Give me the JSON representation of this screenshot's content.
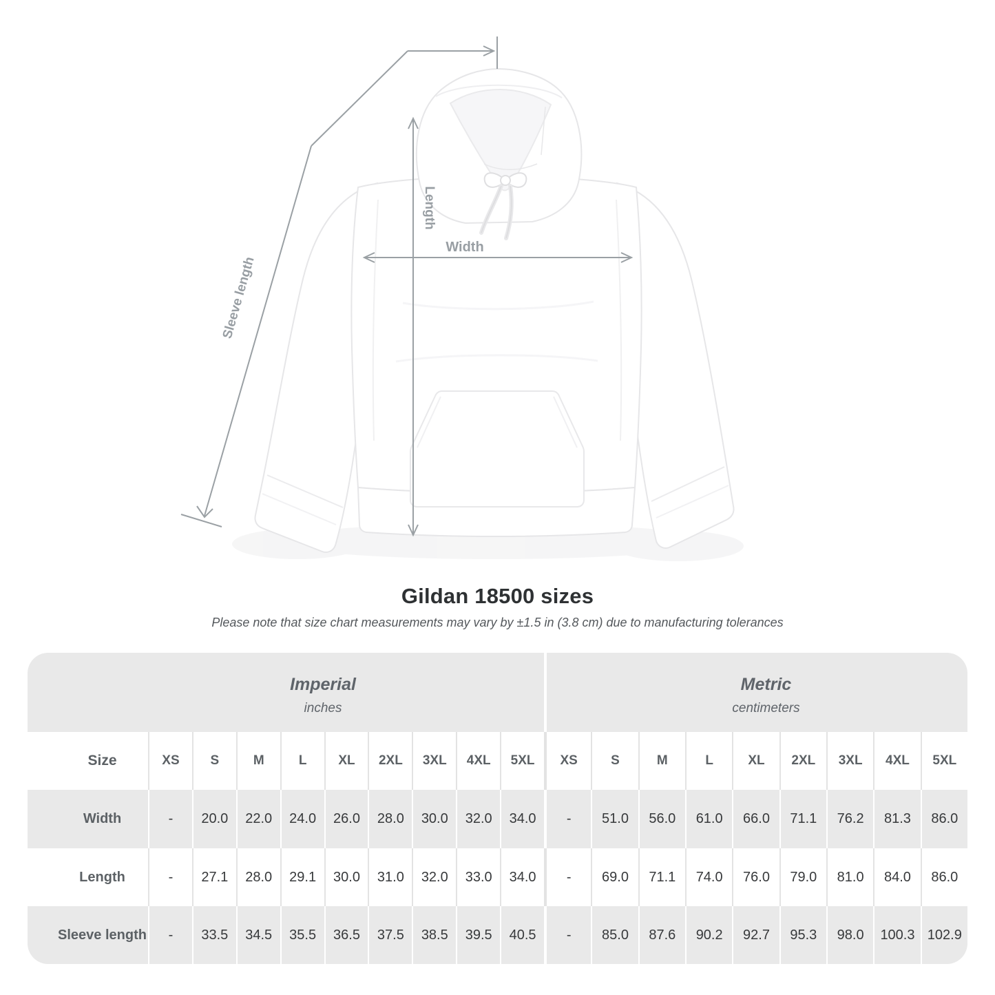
{
  "heading": {
    "title": "Gildan 18500 sizes",
    "subtitle": "Please note that size chart measurements may vary by ±1.5 in (3.8 cm) due to manufacturing tolerances"
  },
  "diagram": {
    "labels": {
      "sleeve_length": "Sleeve length",
      "length": "Length",
      "width": "Width"
    },
    "line_color": "#979da1",
    "label_color": "#989ea3",
    "garment": "white hoodie front view"
  },
  "table": {
    "size_header": "Size",
    "unit_groups": [
      {
        "name": "Imperial",
        "unit": "inches"
      },
      {
        "name": "Metric",
        "unit": "centimeters"
      }
    ],
    "size_columns": [
      "XS",
      "S",
      "M",
      "L",
      "XL",
      "2XL",
      "3XL",
      "4XL",
      "5XL"
    ],
    "rows": [
      {
        "label": "Width",
        "imperial": [
          "-",
          "20.0",
          "22.0",
          "24.0",
          "26.0",
          "28.0",
          "30.0",
          "32.0",
          "34.0"
        ],
        "metric": [
          "-",
          "51.0",
          "56.0",
          "61.0",
          "66.0",
          "71.1",
          "76.2",
          "81.3",
          "86.0"
        ]
      },
      {
        "label": "Length",
        "imperial": [
          "-",
          "27.1",
          "28.0",
          "29.1",
          "30.0",
          "31.0",
          "32.0",
          "33.0",
          "34.0"
        ],
        "metric": [
          "-",
          "69.0",
          "71.1",
          "74.0",
          "76.0",
          "79.0",
          "81.0",
          "84.0",
          "86.0"
        ]
      },
      {
        "label": "Sleeve length",
        "imperial": [
          "-",
          "33.5",
          "34.5",
          "35.5",
          "36.5",
          "37.5",
          "38.5",
          "39.5",
          "40.5"
        ],
        "metric": [
          "-",
          "85.0",
          "87.6",
          "90.2",
          "92.7",
          "95.3",
          "98.0",
          "100.3",
          "102.9"
        ]
      }
    ],
    "colors": {
      "band_bg": "#e9e9e9",
      "alt_row_bg": "#e9e9e9",
      "header_text": "#5f646a",
      "value_text": "#37393b",
      "separator_on_white": "#e3e3e3",
      "separator_on_gray": "#ffffff"
    }
  }
}
